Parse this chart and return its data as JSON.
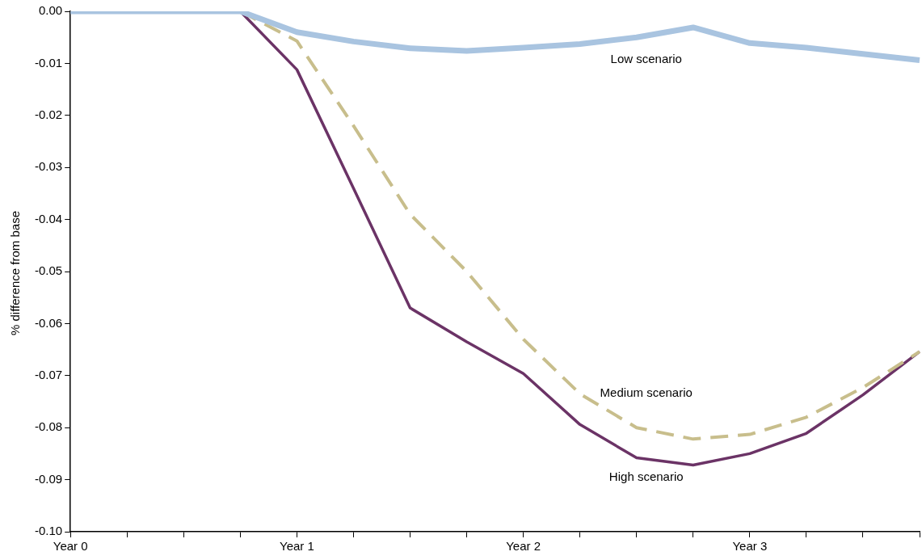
{
  "chart_data": {
    "type": "line",
    "ylabel": "% difference from base",
    "categories": [
      "Year 0",
      null,
      null,
      null,
      "Year 1",
      null,
      null,
      null,
      "Year 2",
      null,
      null,
      null,
      "Year 3",
      null,
      null,
      null
    ],
    "series": [
      {
        "name": "Low scenario",
        "color": "#a9c4e0",
        "values": [
          0,
          0,
          0,
          0,
          -0.004,
          -0.0058,
          -0.0071,
          -0.0076,
          -0.007,
          -0.0063,
          -0.005,
          -0.0031,
          -0.0061,
          -0.007,
          -0.0082,
          -0.0094
        ]
      },
      {
        "name": "Medium scenario",
        "color": "#c8be8c",
        "line_style": "dashed",
        "values": [
          null,
          null,
          null,
          0,
          -0.0057,
          -0.022,
          -0.039,
          -0.05,
          -0.063,
          -0.0735,
          -0.08,
          -0.0822,
          -0.0813,
          -0.078,
          -0.0723,
          -0.0654
        ]
      },
      {
        "name": "High scenario",
        "color": "#6b3366",
        "values": [
          null,
          null,
          null,
          0,
          -0.0112,
          -0.034,
          -0.057,
          -0.0635,
          -0.0696,
          -0.0794,
          -0.0858,
          -0.0872,
          -0.085,
          -0.0811,
          -0.0737,
          -0.0654
        ]
      }
    ],
    "ylim": [
      -0.1,
      0
    ],
    "yticks": [
      {
        "value": -0.1,
        "label": "-0.10"
      },
      {
        "value": -0.09,
        "label": "-0.09"
      },
      {
        "value": -0.08,
        "label": "-0.08"
      },
      {
        "value": -0.07,
        "label": "-0.07"
      },
      {
        "value": -0.06,
        "label": "-0.06"
      },
      {
        "value": -0.05,
        "label": "-0.05"
      },
      {
        "value": -0.04,
        "label": "-0.04"
      },
      {
        "value": -0.03,
        "label": "-0.03"
      },
      {
        "value": -0.02,
        "label": "-0.02"
      },
      {
        "value": -0.01,
        "label": "-0.01"
      },
      {
        "value": 0,
        "label": "0.00"
      }
    ],
    "grid": false,
    "legend": false,
    "marker": "none"
  }
}
